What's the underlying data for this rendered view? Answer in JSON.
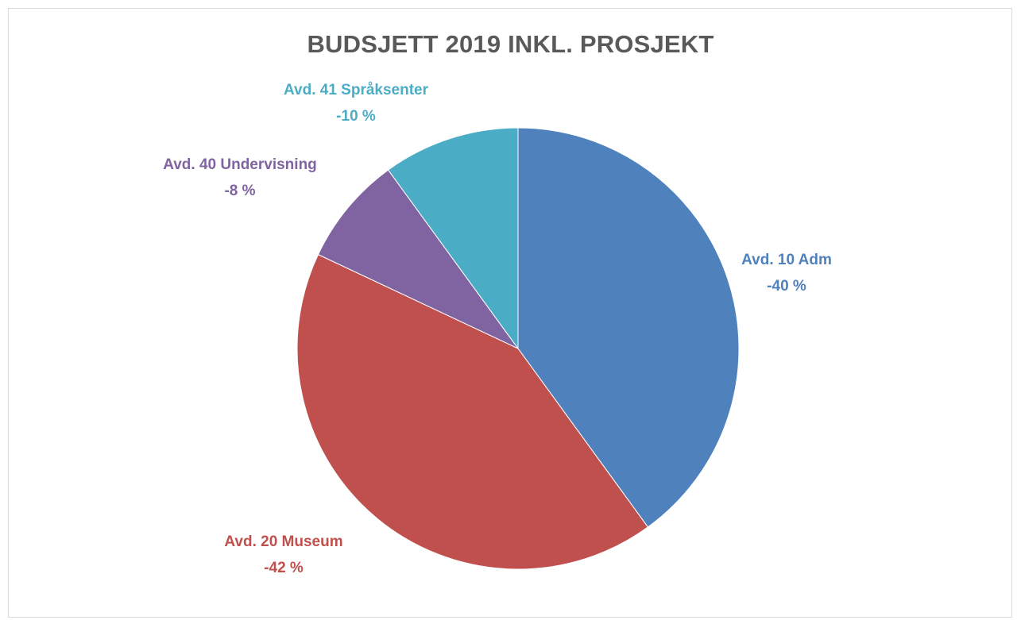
{
  "chart_data": {
    "type": "pie",
    "title": "BUDSJETT 2019 INKL. PROSJEKT",
    "slices": [
      {
        "label": "Avd. 10 Adm",
        "value_label": "-40 %",
        "value": 40,
        "color": "#4F81BD"
      },
      {
        "label": "Avd. 20 Museum",
        "value_label": "-42 %",
        "value": 42,
        "color": "#C0504D"
      },
      {
        "label": "Avd. 40 Undervisning",
        "value_label": "-8 %",
        "value": 8,
        "color": "#8064A2"
      },
      {
        "label": "Avd. 41 Språksenter",
        "value_label": "-10 %",
        "value": 10,
        "color": "#4BACC6"
      }
    ],
    "legend": "none"
  }
}
